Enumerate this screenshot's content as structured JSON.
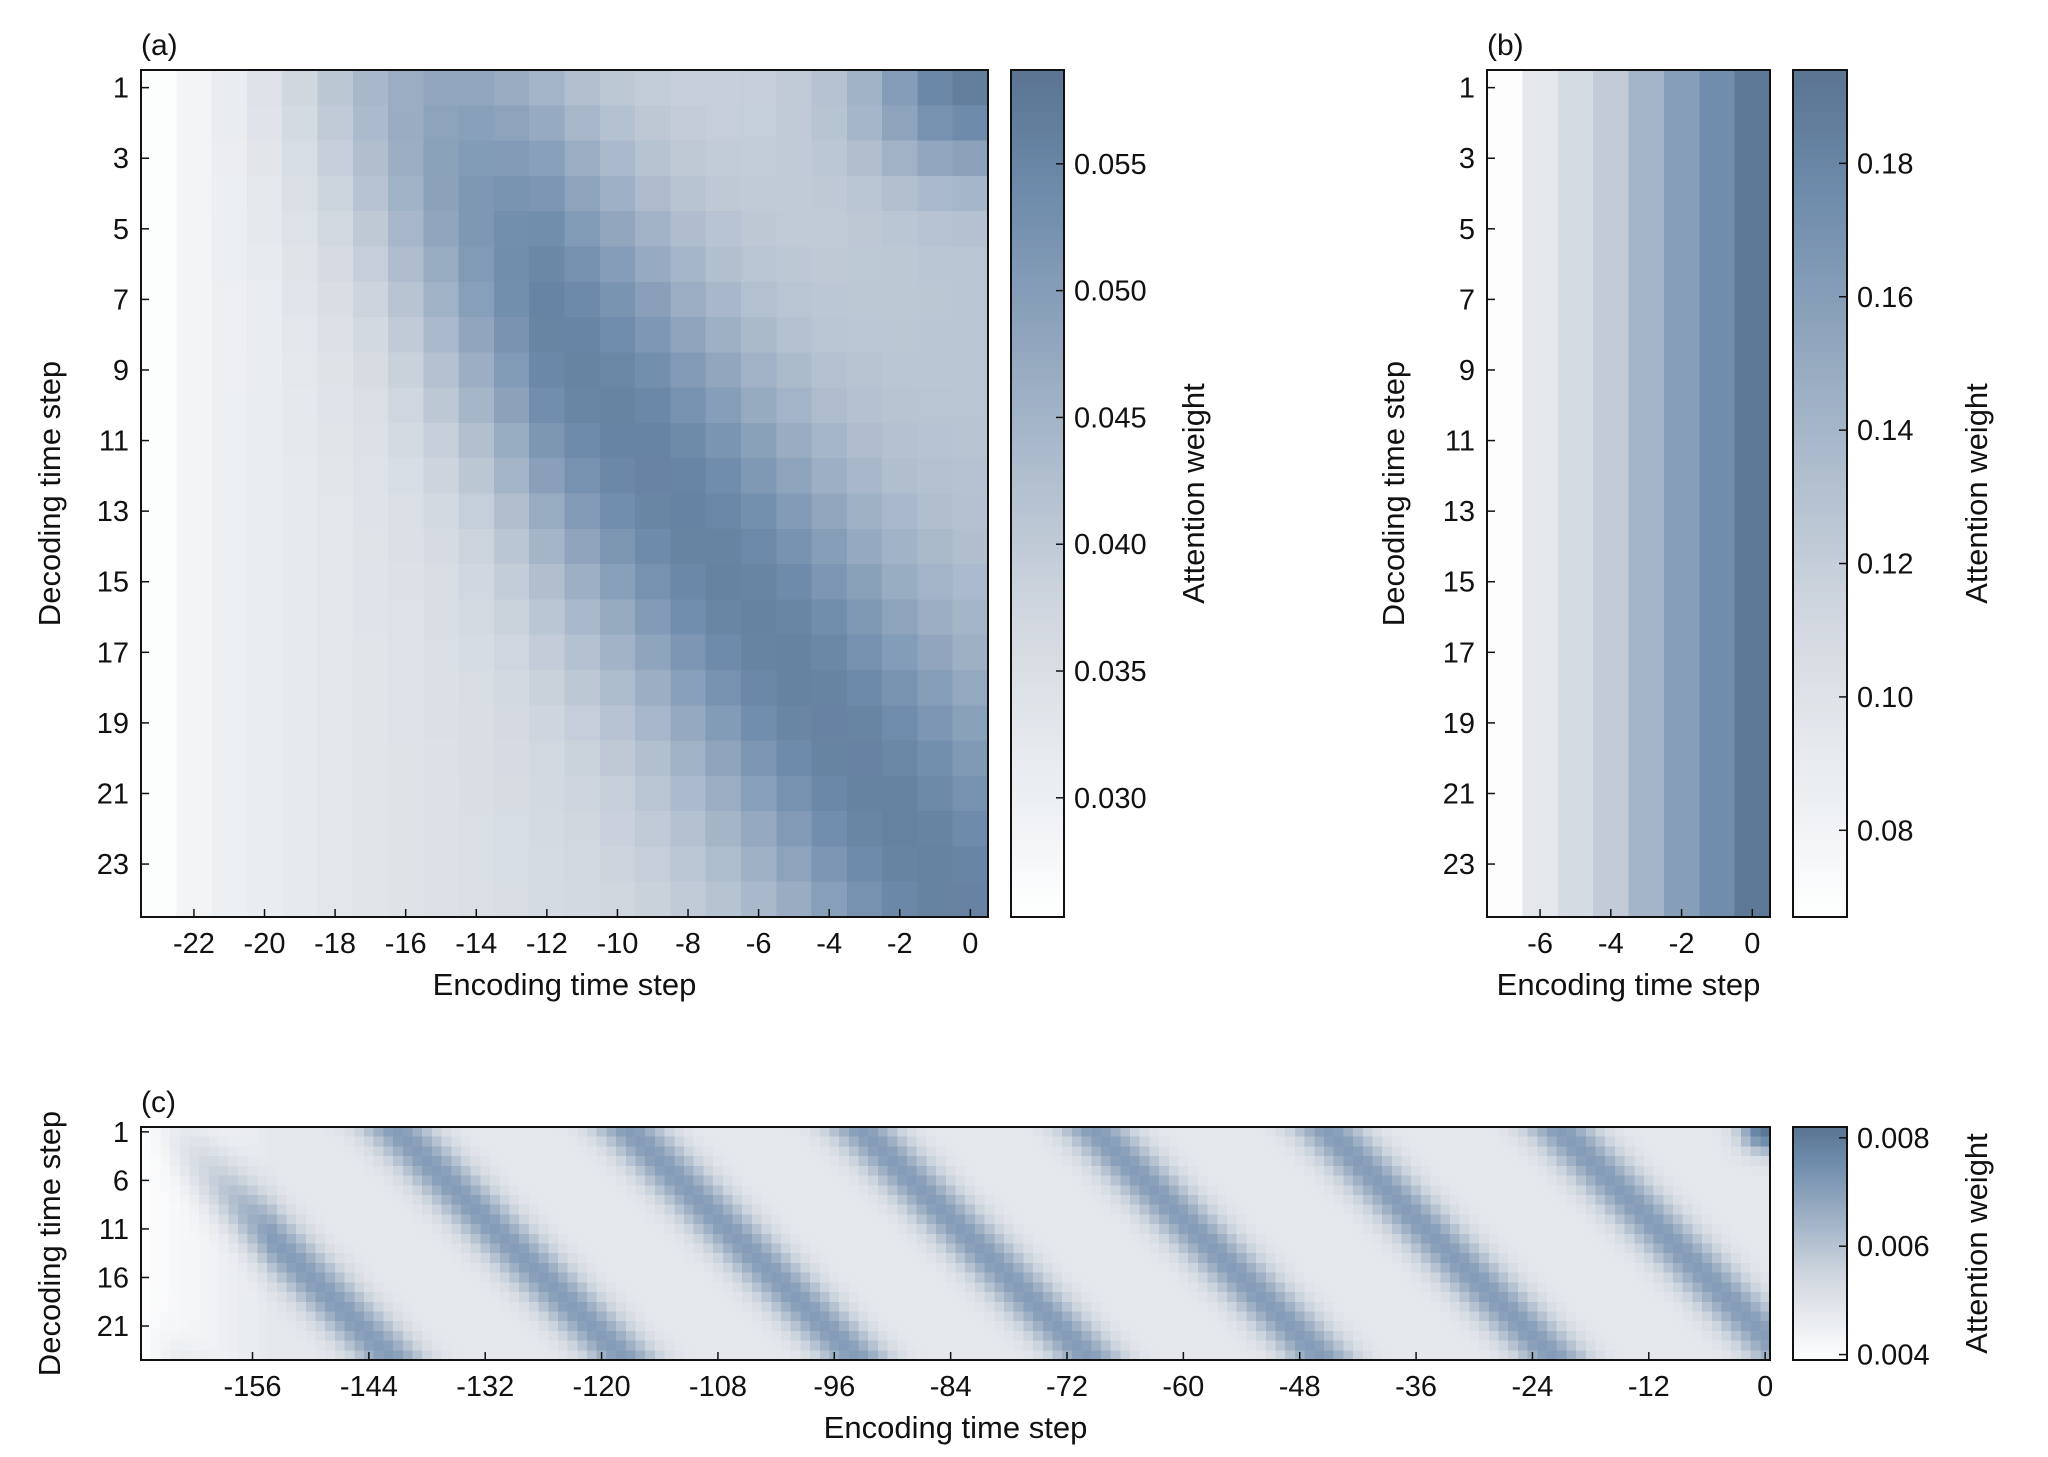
{
  "chart_data": [
    {
      "type": "heatmap",
      "panel": "(a)",
      "xlabel": "Encoding time step",
      "ylabel": "Decoding time step",
      "x_range": [
        -23,
        0
      ],
      "y_range": [
        1,
        24
      ],
      "x_ticks": [
        -22,
        -20,
        -18,
        -16,
        -14,
        -12,
        -10,
        -8,
        -6,
        -4,
        -2,
        0
      ],
      "y_ticks": [
        1,
        3,
        5,
        7,
        9,
        11,
        13,
        15,
        17,
        19,
        21,
        23
      ],
      "colorbar": {
        "label": "Attention weight",
        "range": [
          0.0253,
          0.0587
        ],
        "ticks": [
          0.03,
          0.035,
          0.04,
          0.045,
          0.05,
          0.055
        ],
        "tick_labels": [
          "0.030",
          "0.035",
          "0.040",
          "0.045",
          "0.050",
          "0.055"
        ]
      },
      "pattern": {
        "kind": "diagonal_band",
        "base_min": 0.026,
        "base_at_zero": 0.041,
        "band_peak": 0.0575,
        "band_start_x": -16.5,
        "band_end_x": -0.5,
        "band_width": 3.6,
        "top_right_peak": 0.058
      },
      "grid": false,
      "colormap": [
        "#ffffff",
        "#d2d8e0",
        "#6f8cac",
        "#5a7492"
      ]
    },
    {
      "type": "heatmap",
      "panel": "(b)",
      "xlabel": "Encoding time step",
      "ylabel": "Decoding time step",
      "x_range": [
        -7,
        0
      ],
      "y_range": [
        1,
        24
      ],
      "x_ticks": [
        -6,
        -4,
        -2,
        0
      ],
      "y_ticks": [
        1,
        3,
        5,
        7,
        9,
        11,
        13,
        15,
        17,
        19,
        21,
        23
      ],
      "colorbar": {
        "label": "Attention weight",
        "range": [
          0.067,
          0.194
        ],
        "ticks": [
          0.08,
          0.1,
          0.12,
          0.14,
          0.16,
          0.18
        ],
        "tick_labels": [
          "0.08",
          "0.10",
          "0.12",
          "0.14",
          "0.16",
          "0.18"
        ]
      },
      "column_values": [
        0.069,
        0.094,
        0.108,
        0.122,
        0.141,
        0.16,
        0.174,
        0.19
      ],
      "grid": false,
      "colormap": [
        "#ffffff",
        "#d2d8e0",
        "#6f8cac",
        "#5a7492"
      ]
    },
    {
      "type": "heatmap",
      "panel": "(c)",
      "xlabel": "Encoding time step",
      "ylabel": "Decoding time step",
      "x_range": [
        -167,
        0
      ],
      "y_range": [
        1,
        24
      ],
      "x_ticks": [
        -156,
        -144,
        -132,
        -120,
        -108,
        -96,
        -84,
        -72,
        -60,
        -48,
        -36,
        -24,
        -12,
        0
      ],
      "y_ticks": [
        1,
        6,
        11,
        16,
        21
      ],
      "colorbar": {
        "label": "Attention weight",
        "range": [
          0.0039,
          0.0082
        ],
        "ticks": [
          0.004,
          0.006,
          0.008
        ],
        "tick_labels": [
          "0.004",
          "0.006",
          "0.008"
        ]
      },
      "pattern": {
        "kind": "periodic_diagonal_stripes",
        "period_x": 24,
        "stripe_offset": -2,
        "min_value": 0.0048,
        "peak_value": 0.0071,
        "top_right_peak": 0.0081,
        "left_fade_x": -160
      },
      "grid": false,
      "colormap": [
        "#ffffff",
        "#d2d8e0",
        "#6f8cac",
        "#5a7492"
      ]
    }
  ]
}
